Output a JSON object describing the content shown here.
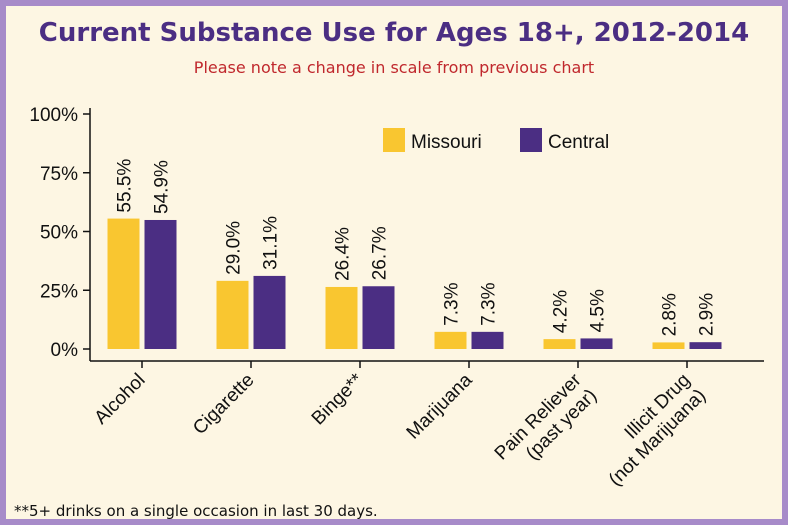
{
  "title": "Current Substance Use for Ages 18+, 2012-2014",
  "subtitle": "Please note a change in scale from previous chart",
  "footnote": "**5+ drinks on a single occasion in last 30 days.",
  "colors": {
    "frame": "#a78bc9",
    "background": "#fdf6e3",
    "title": "#4b2e83",
    "subtitle": "#c0282d",
    "missouri": "#f9c630",
    "central": "#4b2e83"
  },
  "chart_data": {
    "type": "bar",
    "categories": [
      [
        "Alcohol"
      ],
      [
        "Cigarette"
      ],
      [
        "Binge**"
      ],
      [
        "Marijuana"
      ],
      [
        "Pain Reliever",
        "(past year)"
      ],
      [
        "Illicit Drug",
        "(not Marijuana)"
      ]
    ],
    "series": [
      {
        "name": "Missouri",
        "values": [
          55.5,
          29.0,
          26.4,
          7.3,
          4.2,
          2.8
        ],
        "labels": [
          "55.5%",
          "29.0%",
          "26.4%",
          "7.3%",
          "4.2%",
          "2.8%"
        ]
      },
      {
        "name": "Central",
        "values": [
          54.9,
          31.1,
          26.7,
          7.3,
          4.5,
          2.9
        ],
        "labels": [
          "54.9%",
          "31.1%",
          "26.7%",
          "7.3%",
          "4.5%",
          "2.9%"
        ]
      }
    ],
    "ylim": [
      0,
      100
    ],
    "yticks": [
      0,
      25,
      50,
      75,
      100
    ],
    "ytick_labels": [
      "0%",
      "25%",
      "50%",
      "75%",
      "100%"
    ],
    "legend": "top-right",
    "grid": false
  }
}
